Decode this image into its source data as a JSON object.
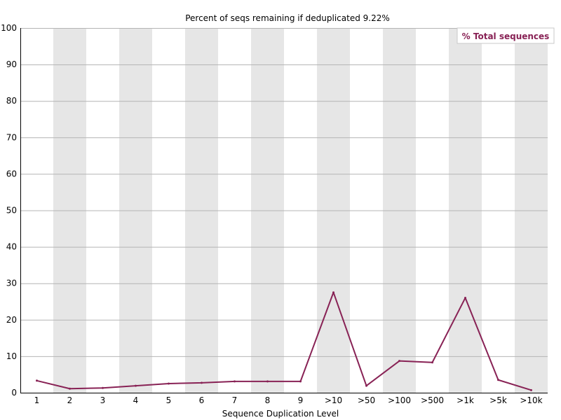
{
  "chart_data": {
    "type": "line",
    "title": "Percent of seqs remaining if deduplicated 9.22%",
    "xlabel": "Sequence Duplication Level",
    "ylabel": "",
    "categories": [
      "1",
      "2",
      "3",
      "4",
      "5",
      "6",
      "7",
      "8",
      "9",
      ">10",
      ">50",
      ">100",
      ">500",
      ">1k",
      ">5k",
      ">10k"
    ],
    "ylim": [
      0,
      100
    ],
    "yticks": [
      0,
      10,
      20,
      30,
      40,
      50,
      60,
      70,
      80,
      90,
      100
    ],
    "grid": true,
    "legend_position": "top-right",
    "series": [
      {
        "name": "% Total sequences",
        "color": "#882255",
        "values": [
          3.3,
          1.1,
          1.3,
          1.9,
          2.5,
          2.7,
          3.1,
          3.1,
          3.1,
          27.5,
          1.9,
          8.7,
          8.3,
          26.0,
          3.5,
          0.7
        ]
      }
    ]
  }
}
